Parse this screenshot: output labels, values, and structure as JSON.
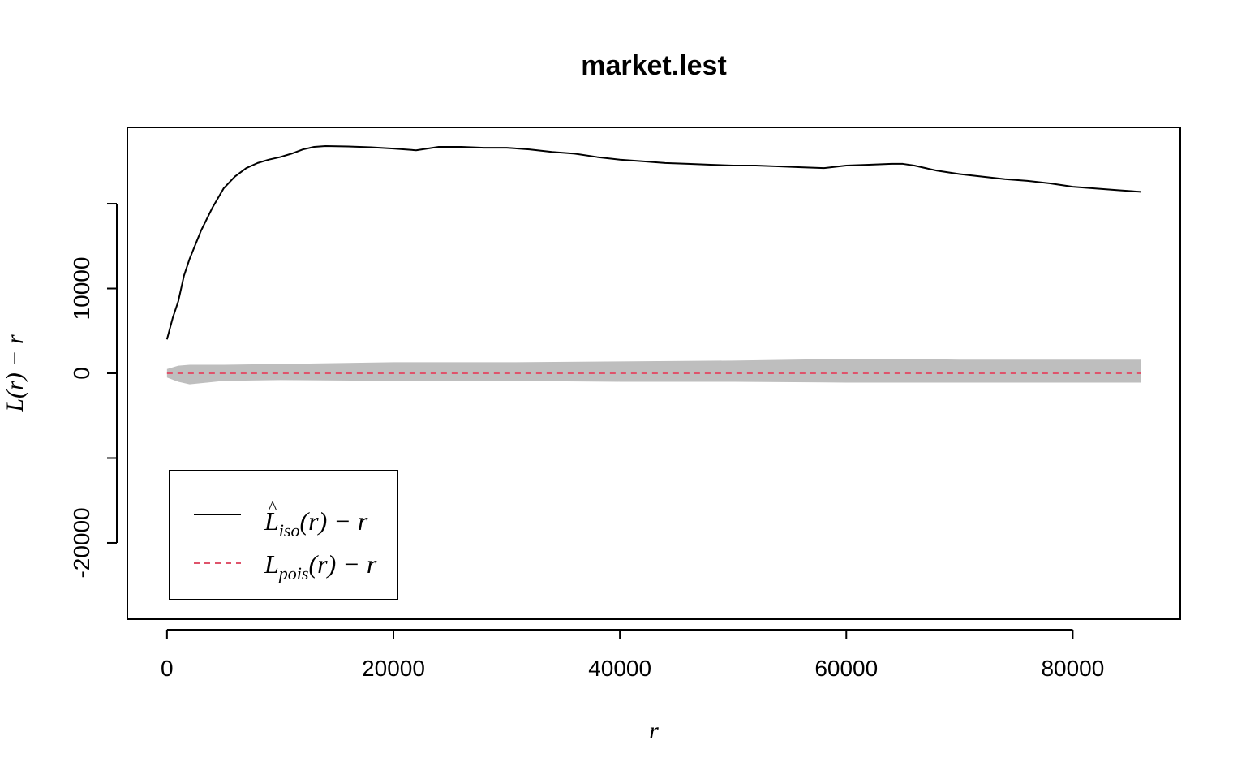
{
  "chart_data": {
    "type": "line",
    "title": "market.lest",
    "xlabel": "r",
    "ylabel": "L(r) − r",
    "xlim": [
      -3500,
      89500
    ],
    "ylim": [
      -29000,
      29000
    ],
    "x_ticks": [
      0,
      20000,
      40000,
      60000,
      80000
    ],
    "x_tick_labels": [
      "0",
      "20000",
      "40000",
      "60000",
      "80000"
    ],
    "y_ticks": [
      -20000,
      -10000,
      0,
      10000,
      20000
    ],
    "y_tick_labels": [
      "-20000",
      "",
      "0",
      "10000",
      ""
    ],
    "grid": false,
    "legend_position": "bottom-left",
    "series": [
      {
        "name": "L̂iso(r) − r",
        "legend": {
          "main": "L",
          "hat": "^",
          "sub": "iso",
          "suffix": "(r) − r"
        },
        "style": "solid",
        "color": "#000000",
        "x": [
          0,
          500,
          1000,
          1500,
          2000,
          3000,
          4000,
          5000,
          6000,
          7000,
          8000,
          9000,
          10000,
          11000,
          12000,
          13000,
          14000,
          16000,
          18000,
          20000,
          22000,
          24000,
          26000,
          28000,
          30000,
          32000,
          34000,
          36000,
          38000,
          40000,
          42000,
          44000,
          46000,
          48000,
          50000,
          52000,
          54000,
          56000,
          58000,
          60000,
          62000,
          64000,
          65000,
          66000,
          68000,
          70000,
          72000,
          74000,
          76000,
          78000,
          80000,
          82000,
          84000,
          86000
        ],
        "y": [
          4000,
          6500,
          8500,
          11500,
          13500,
          16800,
          19500,
          21800,
          23200,
          24200,
          24800,
          25200,
          25500,
          25900,
          26400,
          26700,
          26800,
          26750,
          26650,
          26500,
          26300,
          26700,
          26700,
          26600,
          26600,
          26400,
          26100,
          25900,
          25500,
          25200,
          25000,
          24800,
          24700,
          24600,
          24500,
          24500,
          24400,
          24300,
          24200,
          24500,
          24600,
          24700,
          24700,
          24500,
          23900,
          23500,
          23200,
          22900,
          22700,
          22400,
          22000,
          21800,
          21600,
          21400
        ]
      },
      {
        "name": "Lpois(r) − r",
        "legend": {
          "main": "L",
          "hat": "",
          "sub": "pois",
          "suffix": "(r) − r"
        },
        "style": "dashed",
        "color": "#DF536B",
        "x": [
          0,
          86000
        ],
        "y": [
          0,
          0
        ]
      }
    ],
    "envelope": {
      "color": "#BEBEBE",
      "x": [
        0,
        1000,
        2000,
        5000,
        10000,
        20000,
        30000,
        40000,
        50000,
        60000,
        65000,
        70000,
        80000,
        86000
      ],
      "upper": [
        500,
        900,
        1000,
        1000,
        1100,
        1300,
        1300,
        1400,
        1500,
        1700,
        1700,
        1600,
        1600,
        1600
      ],
      "lower": [
        -500,
        -1000,
        -1300,
        -900,
        -800,
        -900,
        -900,
        -1000,
        -1000,
        -1100,
        -1100,
        -1100,
        -1100,
        -1100
      ]
    }
  }
}
